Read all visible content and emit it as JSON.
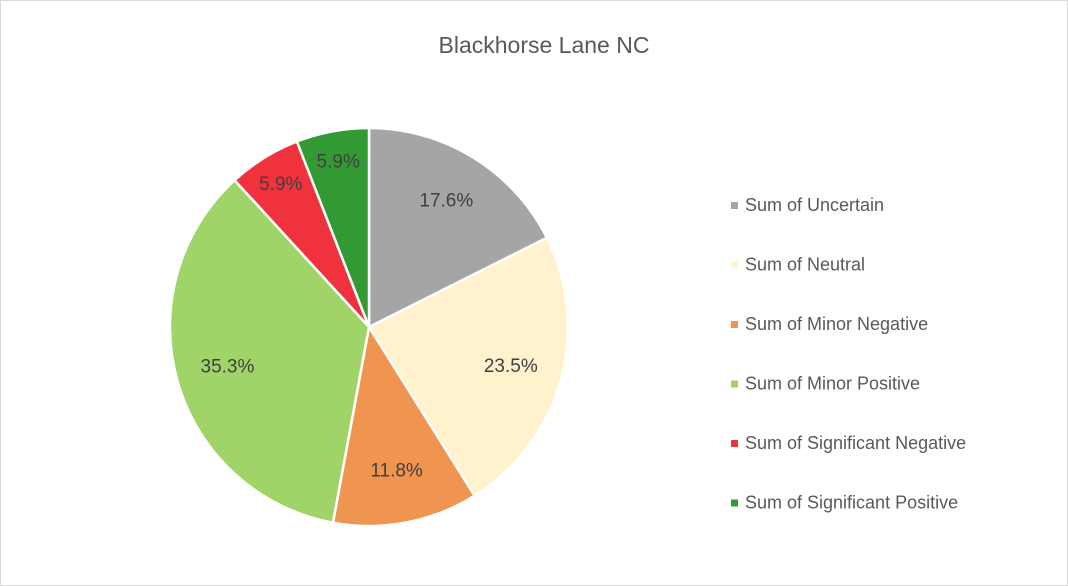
{
  "chart_data": {
    "type": "pie",
    "title": "Blackhorse Lane NC",
    "categories": [
      "Sum of Uncertain",
      "Sum of Neutral",
      "Sum of Minor Negative",
      "Sum of Minor Positive",
      "Sum of Significant Negative",
      "Sum of Significant Positive"
    ],
    "values": [
      17.6,
      23.5,
      11.8,
      35.3,
      5.9,
      5.9
    ],
    "value_labels": [
      "17.6%",
      "23.5%",
      "11.8%",
      "35.3%",
      "5.9%",
      "5.9%"
    ],
    "colors": [
      "#a5a5a5",
      "#fff2cc",
      "#f0954f",
      "#a0d468",
      "#f0323f",
      "#339933"
    ],
    "legend": "right"
  }
}
